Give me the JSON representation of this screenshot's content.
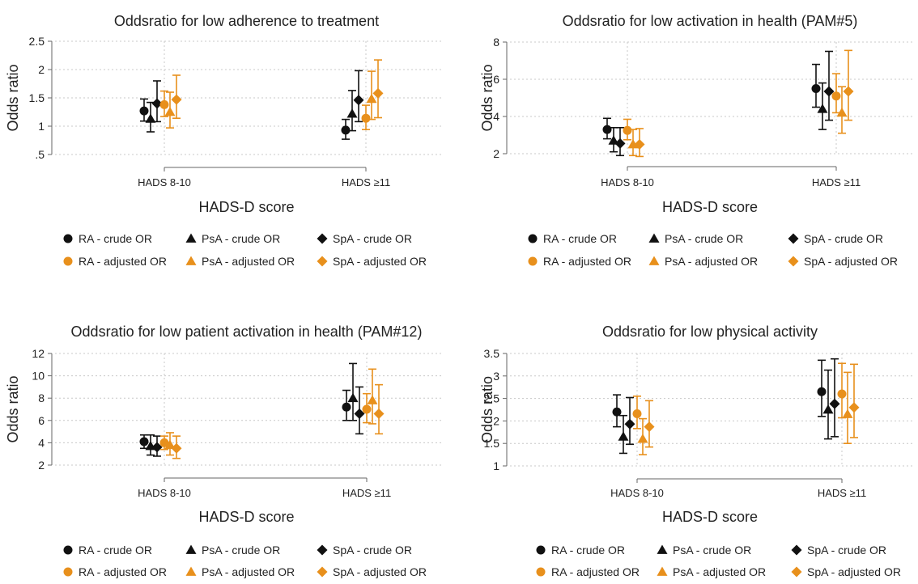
{
  "colors": {
    "crude": "#111111",
    "adjusted": "#e8901c",
    "grid": "#c8c8c8",
    "axis": "#666666",
    "text": "#222222"
  },
  "panels": [
    {
      "title": "Oddsratio for low adherence to treatment",
      "xlabel": "HADS-D score",
      "ylabel": "Odds ratio",
      "x_ticks": [
        "HADS 8-10",
        "HADS ≥11"
      ],
      "legend": [
        "RA - crude OR",
        "PsA - crude OR",
        "SpA - crude OR",
        "RA - adjusted OR",
        "PsA - adjusted OR",
        "SpA - adjusted OR"
      ]
    },
    {
      "title": "Oddsratio for low activation in health (PAM#5)",
      "xlabel": "HADS-D score",
      "ylabel": "Odds ratio",
      "x_ticks": [
        "HADS 8-10",
        "HADS ≥11"
      ],
      "legend": [
        "RA - crude OR",
        "PsA - crude OR",
        "SpA - crude OR",
        "RA - adjusted OR",
        "PsA - adjusted OR",
        "SpA - adjusted OR"
      ]
    },
    {
      "title": "Oddsratio for low patient activation in health (PAM#12)",
      "xlabel": "HADS-D score",
      "ylabel": "Odds ratio",
      "x_ticks": [
        "HADS 8-10",
        "HADS ≥11"
      ],
      "legend": [
        "RA - crude OR",
        "PsA - crude OR",
        "SpA - crude OR",
        "RA - adjusted OR",
        "PsA - adjusted OR",
        "SpA - adjusted OR"
      ]
    },
    {
      "title": "Oddsratio for low physical activity",
      "xlabel": "HADS-D score",
      "ylabel": "Odds ratio",
      "x_ticks": [
        "HADS 8-10",
        "HADS ≥11"
      ],
      "legend": [
        "RA - crude OR",
        "PsA - crude OR",
        "SpA - crude OR",
        "RA - adjusted OR",
        "PsA - adjusted OR",
        "SpA - adjusted OR"
      ]
    }
  ],
  "chart_data": [
    {
      "type": "scatter",
      "title": "Oddsratio for low adherence to treatment",
      "xlabel": "HADS-D score",
      "ylabel": "Odds ratio",
      "categories": [
        "HADS 8-10",
        "HADS ≥11"
      ],
      "yticks": [
        ".5",
        "1",
        "1.5",
        "2",
        "2.5"
      ],
      "ylim": [
        0.5,
        2.5
      ],
      "grid": true,
      "legend_position": "bottom",
      "series": [
        {
          "name": "RA - crude OR",
          "marker": "circle",
          "color": "crude",
          "values": [
            1.27,
            0.93
          ],
          "lower": [
            1.09,
            0.77
          ],
          "upper": [
            1.48,
            1.12
          ]
        },
        {
          "name": "PsA - crude OR",
          "marker": "triangle",
          "color": "crude",
          "values": [
            1.13,
            1.22
          ],
          "lower": [
            0.9,
            0.92
          ],
          "upper": [
            1.42,
            1.63
          ]
        },
        {
          "name": "SpA - crude OR",
          "marker": "diamond",
          "color": "crude",
          "values": [
            1.4,
            1.46
          ],
          "lower": [
            1.08,
            1.08
          ],
          "upper": [
            1.8,
            1.98
          ]
        },
        {
          "name": "RA - adjusted OR",
          "marker": "circle",
          "color": "adjusted",
          "values": [
            1.38,
            1.14
          ],
          "lower": [
            1.17,
            0.94
          ],
          "upper": [
            1.62,
            1.37
          ]
        },
        {
          "name": "PsA - adjusted OR",
          "marker": "triangle",
          "color": "adjusted",
          "values": [
            1.25,
            1.48
          ],
          "lower": [
            0.97,
            1.12
          ],
          "upper": [
            1.6,
            1.97
          ]
        },
        {
          "name": "SpA - adjusted OR",
          "marker": "diamond",
          "color": "adjusted",
          "values": [
            1.47,
            1.58
          ],
          "lower": [
            1.14,
            1.15
          ],
          "upper": [
            1.9,
            2.17
          ]
        }
      ]
    },
    {
      "type": "scatter",
      "title": "Oddsratio for low activation in health (PAM#5)",
      "xlabel": "HADS-D score",
      "ylabel": "Odds ratio",
      "categories": [
        "HADS 8-10",
        "HADS ≥11"
      ],
      "yticks": [
        "2",
        "4",
        "6",
        "8"
      ],
      "ylim": [
        2,
        8
      ],
      "grid": true,
      "legend_position": "bottom",
      "series": [
        {
          "name": "RA - crude OR",
          "marker": "circle",
          "color": "crude",
          "values": [
            3.3,
            5.5
          ],
          "lower": [
            2.8,
            4.5
          ],
          "upper": [
            3.9,
            6.8
          ]
        },
        {
          "name": "PsA - crude OR",
          "marker": "triangle",
          "color": "crude",
          "values": [
            2.7,
            4.4
          ],
          "lower": [
            2.1,
            3.3
          ],
          "upper": [
            3.4,
            5.8
          ]
        },
        {
          "name": "SpA - crude OR",
          "marker": "diamond",
          "color": "crude",
          "values": [
            2.55,
            5.35
          ],
          "lower": [
            1.9,
            3.8
          ],
          "upper": [
            3.4,
            7.5
          ]
        },
        {
          "name": "RA - adjusted OR",
          "marker": "circle",
          "color": "adjusted",
          "values": [
            3.25,
            5.1
          ],
          "lower": [
            2.75,
            4.2
          ],
          "upper": [
            3.85,
            6.3
          ]
        },
        {
          "name": "PsA - adjusted OR",
          "marker": "triangle",
          "color": "adjusted",
          "values": [
            2.5,
            4.2
          ],
          "lower": [
            1.9,
            3.1
          ],
          "upper": [
            3.3,
            5.6
          ]
        },
        {
          "name": "SpA - adjusted OR",
          "marker": "diamond",
          "color": "adjusted",
          "values": [
            2.5,
            5.35
          ],
          "lower": [
            1.85,
            3.8
          ],
          "upper": [
            3.35,
            7.55
          ]
        }
      ]
    },
    {
      "type": "scatter",
      "title": "Oddsratio for low patient activation in health (PAM#12)",
      "xlabel": "HADS-D score",
      "ylabel": "Odds ratio",
      "categories": [
        "HADS 8-10",
        "HADS ≥11"
      ],
      "yticks": [
        "2",
        "4",
        "6",
        "8",
        "10",
        "12"
      ],
      "ylim": [
        2,
        12
      ],
      "grid": true,
      "legend_position": "bottom",
      "series": [
        {
          "name": "RA - crude OR",
          "marker": "circle",
          "color": "crude",
          "values": [
            4.1,
            7.2
          ],
          "lower": [
            3.5,
            6.0
          ],
          "upper": [
            4.7,
            8.7
          ]
        },
        {
          "name": "PsA - crude OR",
          "marker": "triangle",
          "color": "crude",
          "values": [
            3.7,
            8.0
          ],
          "lower": [
            2.9,
            6.0
          ],
          "upper": [
            4.7,
            11.1
          ]
        },
        {
          "name": "SpA - crude OR",
          "marker": "diamond",
          "color": "crude",
          "values": [
            3.6,
            6.6
          ],
          "lower": [
            2.8,
            4.8
          ],
          "upper": [
            4.6,
            9.0
          ]
        },
        {
          "name": "RA - adjusted OR",
          "marker": "circle",
          "color": "adjusted",
          "values": [
            4.0,
            7.0
          ],
          "lower": [
            3.4,
            5.8
          ],
          "upper": [
            4.6,
            8.4
          ]
        },
        {
          "name": "PsA - adjusted OR",
          "marker": "triangle",
          "color": "adjusted",
          "values": [
            3.8,
            7.8
          ],
          "lower": [
            2.9,
            5.7
          ],
          "upper": [
            4.9,
            10.6
          ]
        },
        {
          "name": "SpA - adjusted OR",
          "marker": "diamond",
          "color": "adjusted",
          "values": [
            3.5,
            6.6
          ],
          "lower": [
            2.6,
            4.8
          ],
          "upper": [
            4.6,
            9.2
          ]
        }
      ]
    },
    {
      "type": "scatter",
      "title": "Oddsratio for low physical activity",
      "xlabel": "HADS-D score",
      "ylabel": "Odds ratio",
      "categories": [
        "HADS 8-10",
        "HADS ≥11"
      ],
      "yticks": [
        "1",
        "1.5",
        "2",
        "2.5",
        "3",
        "3.5"
      ],
      "ylim": [
        1,
        3.5
      ],
      "grid": true,
      "legend_position": "bottom",
      "series": [
        {
          "name": "RA - crude OR",
          "marker": "circle",
          "color": "crude",
          "values": [
            2.2,
            2.65
          ],
          "lower": [
            1.87,
            2.1
          ],
          "upper": [
            2.58,
            3.35
          ]
        },
        {
          "name": "PsA - crude OR",
          "marker": "triangle",
          "color": "crude",
          "values": [
            1.65,
            2.25
          ],
          "lower": [
            1.28,
            1.6
          ],
          "upper": [
            2.12,
            3.13
          ]
        },
        {
          "name": "SpA - crude OR",
          "marker": "diamond",
          "color": "crude",
          "values": [
            1.93,
            2.38
          ],
          "lower": [
            1.48,
            1.65
          ],
          "upper": [
            2.52,
            3.38
          ]
        },
        {
          "name": "RA - adjusted OR",
          "marker": "circle",
          "color": "adjusted",
          "values": [
            2.16,
            2.6
          ],
          "lower": [
            1.83,
            2.07
          ],
          "upper": [
            2.55,
            3.28
          ]
        },
        {
          "name": "PsA - adjusted OR",
          "marker": "triangle",
          "color": "adjusted",
          "values": [
            1.6,
            2.15
          ],
          "lower": [
            1.25,
            1.5
          ],
          "upper": [
            2.05,
            3.08
          ]
        },
        {
          "name": "SpA - adjusted OR",
          "marker": "diamond",
          "color": "adjusted",
          "values": [
            1.87,
            2.3
          ],
          "lower": [
            1.42,
            1.63
          ],
          "upper": [
            2.45,
            3.26
          ]
        }
      ]
    }
  ]
}
